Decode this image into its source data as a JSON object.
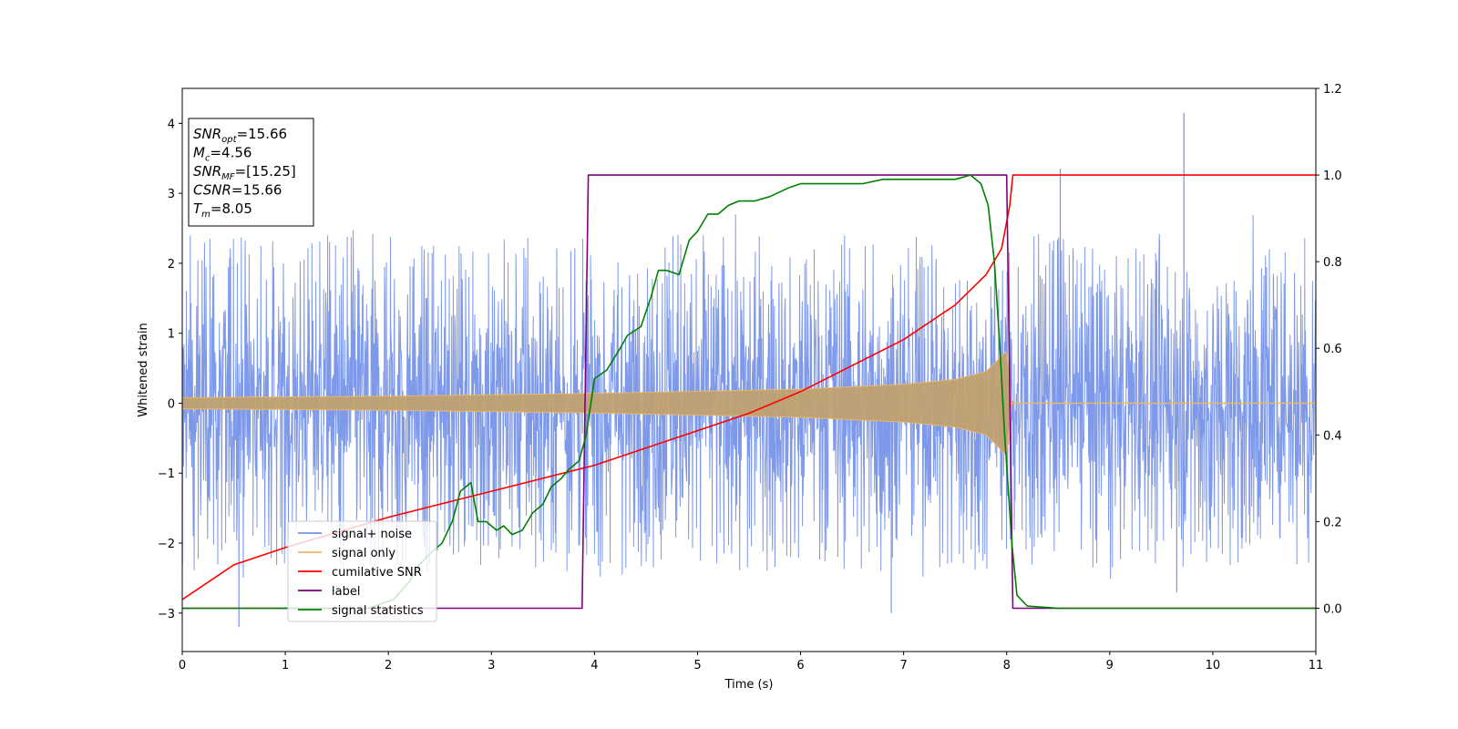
{
  "chart_data": {
    "type": "line",
    "xlabel": "Time (s)",
    "ylabel": "Whitened strain",
    "xlim": [
      0,
      11
    ],
    "ylim_left": [
      -3.55,
      4.5
    ],
    "ylim_right": [
      -0.1,
      1.2
    ],
    "xticks": [
      "0",
      "1",
      "2",
      "3",
      "4",
      "5",
      "6",
      "7",
      "8",
      "9",
      "10",
      "11"
    ],
    "yticks_left": [
      "−3",
      "−2",
      "−1",
      "0",
      "1",
      "2",
      "3",
      "4"
    ],
    "yticks_right": [
      "0.0",
      "0.2",
      "0.4",
      "0.6",
      "0.8",
      "1.0",
      "1.2"
    ],
    "grid": false,
    "legend_position": "lower-left",
    "info_box": {
      "position": "top-left",
      "lines": [
        {
          "var": "SNR",
          "sub": "opt",
          "value": "=15.66"
        },
        {
          "var": "M",
          "sub": "c",
          "value": "=4.56"
        },
        {
          "var": "SNR",
          "sub": "MF",
          "value": "=[15.25]"
        },
        {
          "var": "CSNR",
          "sub": "",
          "value": "=15.66"
        },
        {
          "var": "T",
          "sub": "m",
          "value": "=8.05"
        }
      ]
    },
    "series": [
      {
        "name": "signal+ noise",
        "axis": "left",
        "color": "#7793e8",
        "description_values": {
          "noise_std": 0.95,
          "spike_examples": [
            [
              0.55,
              -3.2
            ],
            [
              2.35,
              -2.05
            ],
            [
              6.88,
              -3.0
            ],
            [
              8.52,
              3.35
            ],
            [
              9.72,
              4.15
            ],
            [
              9.65,
              -2.7
            ]
          ]
        }
      },
      {
        "name": "signal only",
        "axis": "left",
        "color": "#e8b86a",
        "chirp_amplitude": [
          [
            0,
            0.08
          ],
          [
            2,
            0.1
          ],
          [
            4,
            0.14
          ],
          [
            6,
            0.2
          ],
          [
            7,
            0.27
          ],
          [
            7.5,
            0.34
          ],
          [
            7.8,
            0.45
          ],
          [
            8.0,
            0.75
          ],
          [
            8.05,
            0.0
          ],
          [
            11,
            0.0
          ]
        ]
      },
      {
        "name": "cumilative SNR",
        "axis": "right",
        "color": "#ff0000",
        "x": [
          0,
          0.5,
          1,
          2,
          3,
          4,
          5,
          5.5,
          6,
          6.5,
          7,
          7.5,
          7.8,
          7.95,
          8.03,
          8.06,
          11
        ],
        "values": [
          0.02,
          0.1,
          0.14,
          0.21,
          0.27,
          0.33,
          0.41,
          0.45,
          0.5,
          0.56,
          0.62,
          0.7,
          0.77,
          0.83,
          0.93,
          1.0,
          1.0
        ]
      },
      {
        "name": "label",
        "axis": "right",
        "color": "#800080",
        "x": [
          0,
          3.88,
          3.94,
          8.0,
          8.06,
          11
        ],
        "values": [
          0.0,
          0.0,
          1.0,
          1.0,
          0.0,
          0.0
        ]
      },
      {
        "name": "signal statistics",
        "axis": "right",
        "color": "#008000",
        "x": [
          0,
          1.8,
          2.05,
          2.2,
          2.3,
          2.42,
          2.52,
          2.62,
          2.7,
          2.8,
          2.87,
          2.95,
          3.05,
          3.12,
          3.2,
          3.3,
          3.4,
          3.5,
          3.58,
          3.68,
          3.75,
          3.85,
          3.92,
          4.0,
          4.12,
          4.25,
          4.32,
          4.45,
          4.55,
          4.62,
          4.7,
          4.82,
          4.92,
          5.0,
          5.1,
          5.2,
          5.3,
          5.4,
          5.55,
          5.7,
          5.88,
          6.0,
          6.2,
          6.35,
          6.5,
          6.6,
          6.8,
          7.0,
          7.3,
          7.5,
          7.65,
          7.75,
          7.82,
          7.88,
          7.93,
          7.98,
          8.05,
          8.1,
          8.2,
          8.5,
          11
        ],
        "values": [
          0.0,
          0.0,
          0.02,
          0.06,
          0.1,
          0.13,
          0.15,
          0.2,
          0.27,
          0.29,
          0.2,
          0.2,
          0.18,
          0.19,
          0.17,
          0.18,
          0.22,
          0.24,
          0.28,
          0.3,
          0.32,
          0.34,
          0.4,
          0.53,
          0.55,
          0.6,
          0.63,
          0.65,
          0.72,
          0.78,
          0.78,
          0.77,
          0.85,
          0.87,
          0.91,
          0.91,
          0.93,
          0.94,
          0.94,
          0.95,
          0.97,
          0.98,
          0.98,
          0.98,
          0.98,
          0.98,
          0.99,
          0.99,
          0.99,
          0.99,
          1.0,
          0.98,
          0.93,
          0.8,
          0.62,
          0.4,
          0.15,
          0.03,
          0.005,
          0.0,
          0.0
        ]
      }
    ]
  }
}
